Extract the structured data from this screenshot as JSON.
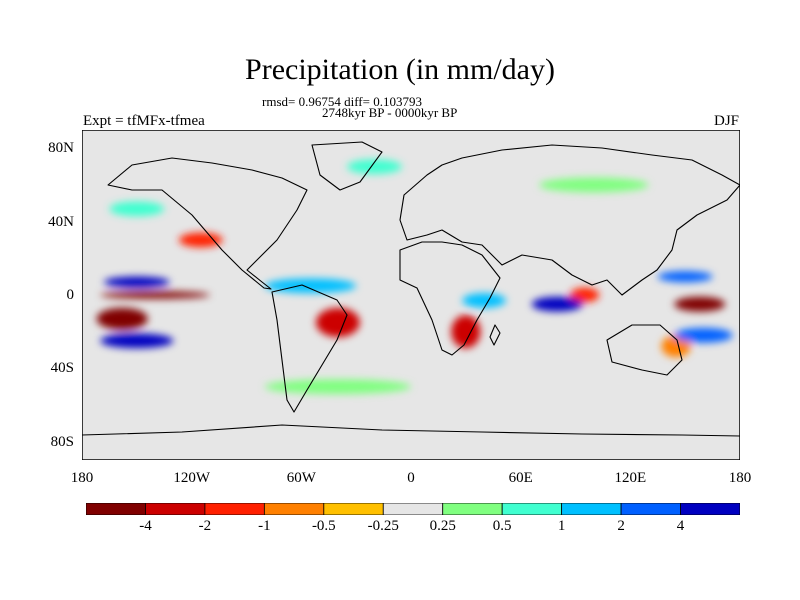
{
  "title": "Precipitation (in mm/day)",
  "stats": "rmsd= 0.96754 diff= 0.103793",
  "period": "2748kyr BP - 0000kyr BP",
  "left_label": "Expt = tfMFx-tfmea",
  "right_label": "DJF",
  "map": {
    "projection": "cylindrical equidistant",
    "lon_range": [
      -180,
      180
    ],
    "lat_range": [
      -90,
      90
    ],
    "background_color": "#e6e6e6",
    "y_ticks": [
      {
        "label": "80N",
        "lat": 80
      },
      {
        "label": "40N",
        "lat": 40
      },
      {
        "label": "0",
        "lat": 0
      },
      {
        "label": "40S",
        "lat": -40
      },
      {
        "label": "80S",
        "lat": -80
      }
    ],
    "x_ticks": [
      {
        "label": "180",
        "lon": -180
      },
      {
        "label": "120W",
        "lon": -120
      },
      {
        "label": "60W",
        "lon": -60
      },
      {
        "label": "0",
        "lon": 0
      },
      {
        "label": "60E",
        "lon": 60
      },
      {
        "label": "120E",
        "lon": 120
      },
      {
        "label": "180",
        "lon": 180
      }
    ],
    "anomaly_regions": [
      {
        "level": "-4",
        "lon": -158,
        "lat": -13,
        "rlon": 14,
        "rlat": 6,
        "note": "tropical S Pacific"
      },
      {
        "level": "-4",
        "lon": 158,
        "lat": -5,
        "rlon": 14,
        "rlat": 4,
        "note": "western equatorial Pacific"
      },
      {
        "level": "-4",
        "lon": -140,
        "lat": 0,
        "rlon": 30,
        "rlat": 2,
        "note": "equatorial Pacific"
      },
      {
        "level": "-2",
        "lon": -40,
        "lat": -15,
        "rlon": 12,
        "rlat": 8,
        "note": "Brazil"
      },
      {
        "level": "-2",
        "lon": 30,
        "lat": -20,
        "rlon": 8,
        "rlat": 9,
        "note": "southern Africa"
      },
      {
        "level": "-1",
        "lon": -115,
        "lat": 30,
        "rlon": 12,
        "rlat": 4,
        "note": "NE Pacific"
      },
      {
        "level": "-1",
        "lon": 95,
        "lat": 0,
        "rlon": 8,
        "rlat": 4,
        "note": "eastern Indian Ocean"
      },
      {
        "level": "-0.5",
        "lon": 145,
        "lat": -28,
        "rlon": 8,
        "rlat": 6,
        "note": "eastern Australia"
      },
      {
        "level": "4",
        "lon": -150,
        "lat": 7,
        "rlon": 18,
        "rlat": 3,
        "note": "N equatorial Pacific"
      },
      {
        "level": "4",
        "lon": -150,
        "lat": -25,
        "rlon": 20,
        "rlat": 4,
        "note": "S Pacific"
      },
      {
        "level": "4",
        "lon": 80,
        "lat": -5,
        "rlon": 14,
        "rlat": 4,
        "note": "central Indian Ocean"
      },
      {
        "level": "2",
        "lon": 150,
        "lat": 10,
        "rlon": 15,
        "rlat": 3,
        "note": "western N Pacific"
      },
      {
        "level": "2",
        "lon": 160,
        "lat": -22,
        "rlon": 16,
        "rlat": 4,
        "note": "SW Pacific"
      },
      {
        "level": "1",
        "lon": -55,
        "lat": 5,
        "rlon": 25,
        "rlat": 4,
        "note": "Atlantic ITCZ"
      },
      {
        "level": "1",
        "lon": 40,
        "lat": -3,
        "rlon": 12,
        "rlat": 4,
        "note": "East Africa"
      },
      {
        "level": "0.5",
        "lon": -20,
        "lat": 70,
        "rlon": 15,
        "rlat": 4,
        "note": "N Atlantic"
      },
      {
        "level": "0.5",
        "lon": -150,
        "lat": 47,
        "rlon": 15,
        "rlat": 4,
        "note": "N Pacific"
      },
      {
        "level": "0.25",
        "lon": -40,
        "lat": -50,
        "rlon": 40,
        "rlat": 4,
        "note": "Southern Ocean"
      },
      {
        "level": "0.25",
        "lon": 100,
        "lat": 60,
        "rlon": 30,
        "rlat": 4,
        "note": "Siberia"
      }
    ]
  },
  "colorbar": {
    "colors": [
      "#800000",
      "#cc0000",
      "#ff2000",
      "#ff8000",
      "#ffc000",
      "#e6e6e6",
      "#80ff80",
      "#40ffd0",
      "#00c0ff",
      "#0060ff",
      "#0000c0"
    ],
    "labels": [
      "-4",
      "-2",
      "-1",
      "-0.5",
      "-0.25",
      "0.25",
      "0.5",
      "1",
      "2",
      "4"
    ]
  }
}
